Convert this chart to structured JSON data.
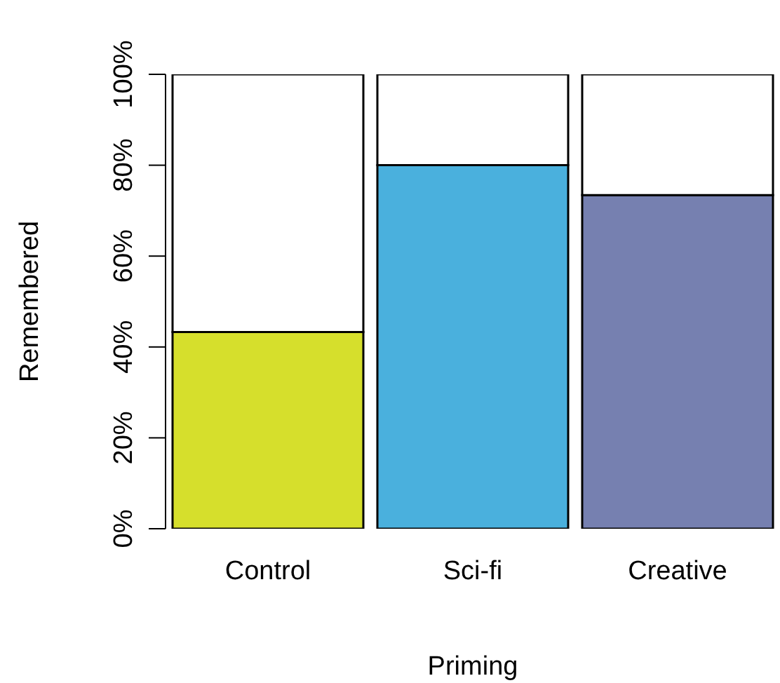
{
  "chart_data": {
    "type": "bar",
    "xlabel": "Priming",
    "ylabel": "Remembered",
    "categories": [
      "Control",
      "Sci-fi",
      "Creative"
    ],
    "stacked": true,
    "series": [
      {
        "colors": [
          "#d6df2c",
          "#4ab0dd",
          "#7680b0"
        ],
        "values": [
          43.3,
          80,
          73.4
        ]
      },
      {
        "color": "#ffffff",
        "values": [
          56.7,
          20,
          26.6
        ]
      }
    ],
    "ylim": [
      0,
      100
    ],
    "yticks": [
      {
        "value": 0,
        "label": "0%"
      },
      {
        "value": 20,
        "label": "20%"
      },
      {
        "value": 40,
        "label": "40%"
      },
      {
        "value": 60,
        "label": "60%"
      },
      {
        "value": 80,
        "label": "80%"
      },
      {
        "value": 100,
        "label": "100%"
      }
    ],
    "grid": false,
    "legend": false
  }
}
